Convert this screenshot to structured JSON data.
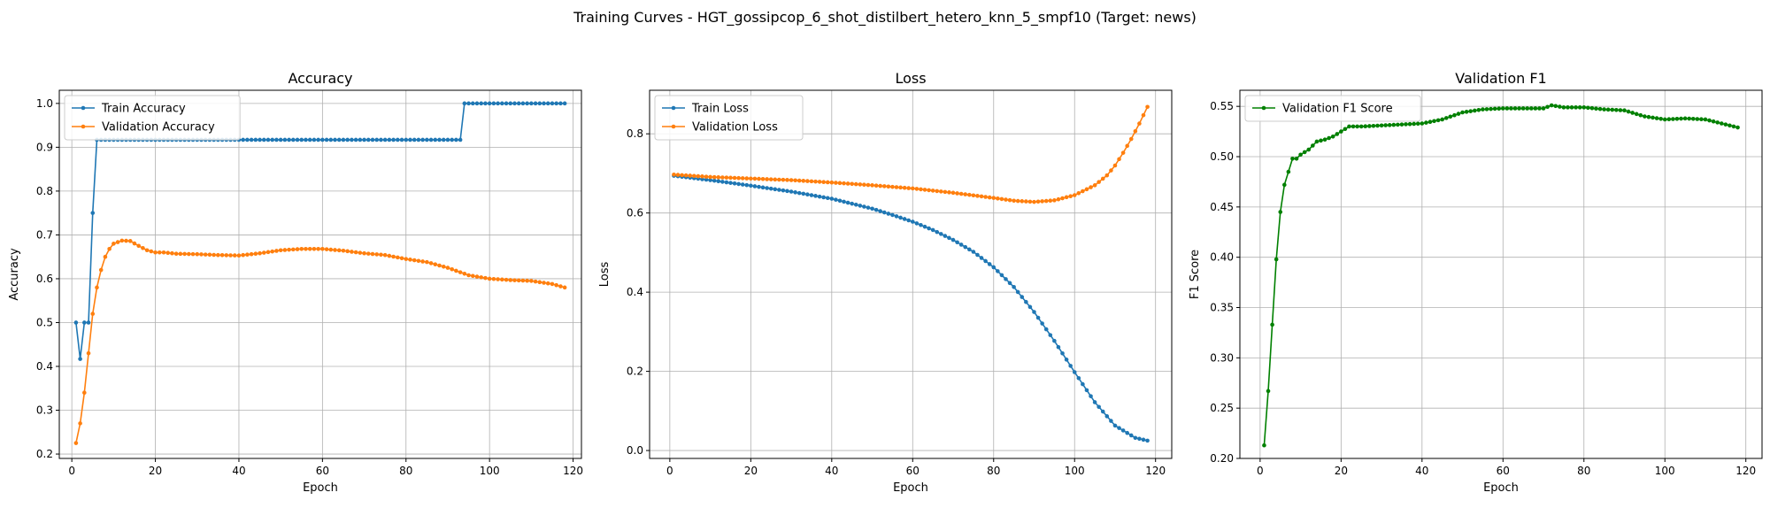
{
  "suptitle": "Training Curves - HGT_gossipcop_6_shot_distilbert_hetero_knn_5_smpf10 (Target: news)",
  "chart_data": [
    {
      "type": "line",
      "title": "Accuracy",
      "xlabel": "Epoch",
      "ylabel": "Accuracy",
      "xlim": [
        -3,
        122
      ],
      "ylim": [
        0.19,
        1.03
      ],
      "xticks": [
        0,
        20,
        40,
        60,
        80,
        100,
        120
      ],
      "yticks": [
        0.2,
        0.3,
        0.4,
        0.5,
        0.6,
        0.7,
        0.8,
        0.9,
        1.0
      ],
      "ytick_decimals": 1,
      "grid": true,
      "legend": "upper-left",
      "series": [
        {
          "name": "Train Accuracy",
          "color": "#1f77b4",
          "points": [
            [
              1,
              0.5
            ],
            [
              2,
              0.417
            ],
            [
              3,
              0.5
            ],
            [
              4,
              0.5
            ],
            [
              5,
              0.75
            ],
            [
              6,
              0.917
            ],
            [
              93,
              0.917
            ],
            [
              94,
              1.0
            ],
            [
              118,
              1.0
            ]
          ]
        },
        {
          "name": "Validation Accuracy",
          "color": "#ff7f0e",
          "points": [
            [
              1,
              0.225
            ],
            [
              2,
              0.27
            ],
            [
              3,
              0.34
            ],
            [
              4,
              0.43
            ],
            [
              5,
              0.52
            ],
            [
              6,
              0.58
            ],
            [
              7,
              0.62
            ],
            [
              8,
              0.65
            ],
            [
              9,
              0.668
            ],
            [
              10,
              0.68
            ],
            [
              12,
              0.687
            ],
            [
              14,
              0.686
            ],
            [
              16,
              0.675
            ],
            [
              18,
              0.665
            ],
            [
              20,
              0.66
            ],
            [
              22,
              0.66
            ],
            [
              25,
              0.657
            ],
            [
              30,
              0.656
            ],
            [
              35,
              0.654
            ],
            [
              40,
              0.653
            ],
            [
              45,
              0.658
            ],
            [
              50,
              0.665
            ],
            [
              55,
              0.668
            ],
            [
              60,
              0.668
            ],
            [
              65,
              0.664
            ],
            [
              70,
              0.658
            ],
            [
              75,
              0.654
            ],
            [
              80,
              0.645
            ],
            [
              85,
              0.638
            ],
            [
              90,
              0.625
            ],
            [
              95,
              0.608
            ],
            [
              100,
              0.6
            ],
            [
              105,
              0.597
            ],
            [
              110,
              0.595
            ],
            [
              115,
              0.588
            ],
            [
              118,
              0.58
            ]
          ]
        }
      ]
    },
    {
      "type": "line",
      "title": "Loss",
      "xlabel": "Epoch",
      "ylabel": "Loss",
      "xlim": [
        -5,
        124
      ],
      "ylim": [
        -0.02,
        0.91
      ],
      "xticks": [
        0,
        20,
        40,
        60,
        80,
        100,
        120
      ],
      "yticks": [
        0.0,
        0.2,
        0.4,
        0.6,
        0.8
      ],
      "ytick_decimals": 1,
      "grid": true,
      "legend": "upper-left",
      "series": [
        {
          "name": "Train Loss",
          "color": "#1f77b4",
          "points": [
            [
              1,
              0.694
            ],
            [
              10,
              0.683
            ],
            [
              20,
              0.669
            ],
            [
              30,
              0.654
            ],
            [
              40,
              0.636
            ],
            [
              50,
              0.611
            ],
            [
              55,
              0.595
            ],
            [
              60,
              0.578
            ],
            [
              65,
              0.557
            ],
            [
              70,
              0.532
            ],
            [
              75,
              0.502
            ],
            [
              80,
              0.463
            ],
            [
              85,
              0.413
            ],
            [
              90,
              0.35
            ],
            [
              95,
              0.277
            ],
            [
              100,
              0.198
            ],
            [
              105,
              0.122
            ],
            [
              110,
              0.063
            ],
            [
              115,
              0.032
            ],
            [
              118,
              0.025
            ]
          ]
        },
        {
          "name": "Validation Loss",
          "color": "#ff7f0e",
          "points": [
            [
              1,
              0.697
            ],
            [
              10,
              0.691
            ],
            [
              20,
              0.687
            ],
            [
              30,
              0.683
            ],
            [
              40,
              0.677
            ],
            [
              50,
              0.67
            ],
            [
              60,
              0.662
            ],
            [
              70,
              0.651
            ],
            [
              80,
              0.638
            ],
            [
              85,
              0.631
            ],
            [
              90,
              0.628
            ],
            [
              95,
              0.632
            ],
            [
              100,
              0.645
            ],
            [
              105,
              0.67
            ],
            [
              108,
              0.695
            ],
            [
              110,
              0.72
            ],
            [
              112,
              0.752
            ],
            [
              114,
              0.787
            ],
            [
              116,
              0.826
            ],
            [
              118,
              0.868
            ]
          ]
        }
      ]
    },
    {
      "type": "line",
      "title": "Validation F1",
      "xlabel": "Epoch",
      "ylabel": "F1 Score",
      "xlim": [
        -5,
        124
      ],
      "ylim": [
        0.2,
        0.566
      ],
      "xticks": [
        0,
        20,
        40,
        60,
        80,
        100,
        120
      ],
      "yticks": [
        0.2,
        0.25,
        0.3,
        0.35,
        0.4,
        0.45,
        0.5,
        0.55
      ],
      "ytick_decimals": 2,
      "grid": true,
      "legend": "upper-left",
      "series": [
        {
          "name": "Validation F1 Score",
          "color": "#008000",
          "points": [
            [
              1,
              0.213
            ],
            [
              2,
              0.267
            ],
            [
              3,
              0.333
            ],
            [
              4,
              0.398
            ],
            [
              5,
              0.445
            ],
            [
              6,
              0.472
            ],
            [
              7,
              0.485
            ],
            [
              8,
              0.498
            ],
            [
              9,
              0.498
            ],
            [
              10,
              0.502
            ],
            [
              12,
              0.507
            ],
            [
              14,
              0.515
            ],
            [
              16,
              0.517
            ],
            [
              18,
              0.52
            ],
            [
              20,
              0.525
            ],
            [
              22,
              0.53
            ],
            [
              25,
              0.53
            ],
            [
              30,
              0.531
            ],
            [
              35,
              0.532
            ],
            [
              40,
              0.533
            ],
            [
              45,
              0.537
            ],
            [
              50,
              0.544
            ],
            [
              55,
              0.547
            ],
            [
              60,
              0.548
            ],
            [
              65,
              0.548
            ],
            [
              70,
              0.548
            ],
            [
              72,
              0.551
            ],
            [
              75,
              0.549
            ],
            [
              80,
              0.549
            ],
            [
              85,
              0.547
            ],
            [
              90,
              0.546
            ],
            [
              95,
              0.54
            ],
            [
              100,
              0.537
            ],
            [
              105,
              0.538
            ],
            [
              110,
              0.537
            ],
            [
              115,
              0.532
            ],
            [
              118,
              0.529
            ]
          ]
        }
      ]
    }
  ]
}
